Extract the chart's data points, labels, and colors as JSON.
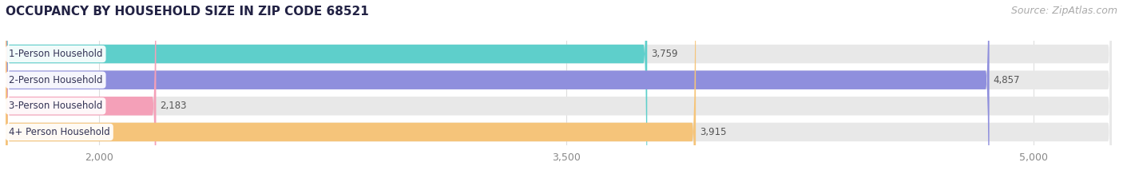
{
  "title": "OCCUPANCY BY HOUSEHOLD SIZE IN ZIP CODE 68521",
  "source": "Source: ZipAtlas.com",
  "categories": [
    "1-Person Household",
    "2-Person Household",
    "3-Person Household",
    "4+ Person Household"
  ],
  "values": [
    3759,
    4857,
    2183,
    3915
  ],
  "bar_colors": [
    "#5ecfcb",
    "#8f8fdd",
    "#f4a0b8",
    "#f5c47a"
  ],
  "value_colors": [
    "#555555",
    "#ffffff",
    "#555555",
    "#ffffff"
  ],
  "xlim_min": 1700,
  "xlim_max": 5250,
  "xticks": [
    2000,
    3500,
    5000
  ],
  "xticklabels": [
    "2,000",
    "3,500",
    "5,000"
  ],
  "background_color": "#ffffff",
  "bar_bg_color": "#e8e8e8",
  "title_fontsize": 11,
  "source_fontsize": 9,
  "label_fontsize": 8.5,
  "value_fontsize": 8.5,
  "tick_fontsize": 9,
  "bar_height": 0.72,
  "rounding_size": 12,
  "grid_color": "#dddddd",
  "label_bg_color": "#ffffff",
  "tick_color": "#888888",
  "title_color": "#222244",
  "source_color": "#aaaaaa"
}
